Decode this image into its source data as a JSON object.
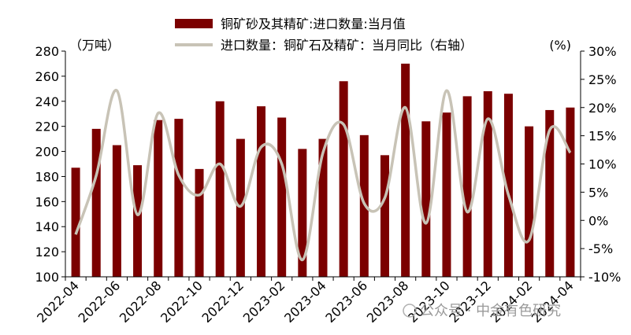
{
  "chart_data": {
    "type": "bar+line",
    "categories": [
      "2022-04",
      "2022-05",
      "2022-06",
      "2022-07",
      "2022-08",
      "2022-09",
      "2022-10",
      "2022-11",
      "2022-12",
      "2023-01",
      "2023-02",
      "2023-03",
      "2023-04",
      "2023-05",
      "2023-06",
      "2023-07",
      "2023-08",
      "2023-09",
      "2023-10",
      "2023-11",
      "2023-12",
      "2024-01",
      "2024-02",
      "2024-03",
      "2024-04"
    ],
    "x_tick_labels": [
      "2022-04",
      "2022-06",
      "2022-08",
      "2022-10",
      "2022-12",
      "2023-02",
      "2023-04",
      "2023-06",
      "2023-08",
      "2023-10",
      "2023-12",
      "2024-02",
      "2024-04"
    ],
    "series": [
      {
        "name": "铜矿砂及其精矿:进口数量:当月值",
        "type": "bar",
        "axis": "left",
        "color": "#7b0000",
        "values": [
          187,
          218,
          205,
          189,
          225,
          226,
          186,
          240,
          210,
          236,
          227,
          202,
          210,
          256,
          213,
          197,
          270,
          224,
          231,
          244,
          248,
          246,
          220,
          233,
          235
        ]
      },
      {
        "name": "进口数量：铜矿石及精矿：当月同比（右轴）",
        "type": "line",
        "axis": "right",
        "color": "#c8c3b6",
        "values": [
          -2.5,
          8,
          23,
          1,
          19,
          8,
          4.5,
          10,
          2.5,
          13,
          10,
          -7,
          12,
          17,
          3,
          4,
          20,
          -0.5,
          23,
          1.5,
          18,
          4.5,
          -3.5,
          16,
          12
        ]
      }
    ],
    "y_left": {
      "unit_label": "（万吨）",
      "ylim": [
        100,
        280
      ],
      "ticks": [
        "100",
        "120",
        "140",
        "160",
        "180",
        "200",
        "220",
        "240",
        "260",
        "280"
      ]
    },
    "y_right": {
      "unit_label": "(%)",
      "ylim": [
        -10,
        30
      ],
      "ticks": [
        "-10%",
        "-5%",
        "0%",
        "5%",
        "10%",
        "15%",
        "20%",
        "25%",
        "30%"
      ]
    },
    "legend_placement": "top",
    "grid": false
  },
  "watermark": "公众号 · 中金有色研究"
}
